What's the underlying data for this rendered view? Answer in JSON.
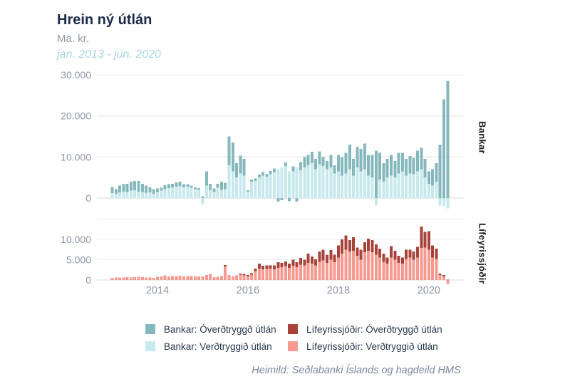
{
  "header": {
    "title": "Hrein ný útlán",
    "unit": "Ma. kr.",
    "period": "jan. 2013 - jún. 2020"
  },
  "footer": {
    "source": "Heimild: Seðlabanki Íslands og hagdeild HMS"
  },
  "colors": {
    "title": "#1c2b4a",
    "muted_text": "#8d96a8",
    "period_text": "#a6d6de",
    "grid": "#ececec",
    "zero_line": "#d8d8d8",
    "panel_label": "#1a1a1a",
    "legend_text": "#27384e",
    "bank_overdtryggd": "#85b8bd",
    "bank_verdtryggd": "#c7e9ee",
    "pension_overdtryggd": "#a7433a",
    "pension_verdtryggd": "#f69a91"
  },
  "legend": {
    "items": [
      {
        "label": "Bankar: Óverðtryggð útlán",
        "color": "#85b8bd"
      },
      {
        "label": "Bankar: Verðtryggið útlán",
        "color": "#c7e9ee"
      },
      {
        "label": "Lífeyrissjóðir: Óverðtryggð útlán",
        "color": "#a7433a"
      },
      {
        "label": "Lífeyrissjóðir: Verðtryggið útlán",
        "color": "#f69a91"
      }
    ]
  },
  "chart_data": {
    "type": "bar",
    "stacked": true,
    "title": "Hrein ný útlán",
    "ylabel": "Ma. kr.",
    "x_start": "jan. 2013",
    "x_end": "jún. 2020",
    "x_ticks": [
      {
        "label": "2014",
        "month_index": 12
      },
      {
        "label": "2016",
        "month_index": 36
      },
      {
        "label": "2018",
        "month_index": 60
      },
      {
        "label": "2020",
        "month_index": 84
      }
    ],
    "panels": [
      {
        "name": "Bankar",
        "ylim": [
          -3000,
          30500
        ],
        "yticks": [
          {
            "value": 30000,
            "label": "30.000"
          },
          {
            "value": 20000,
            "label": "20.000"
          },
          {
            "value": 10000,
            "label": "10.000"
          },
          {
            "value": 0,
            "label": "0"
          }
        ],
        "series": [
          {
            "name": "Bankar: Óverðtryggð útlán",
            "color": "#85b8bd",
            "values": [
              1500,
              1200,
              1600,
              1800,
              2000,
              2200,
              2300,
              2600,
              2000,
              1700,
              1200,
              1200,
              800,
              700,
              900,
              1000,
              900,
              1000,
              1100,
              800,
              600,
              500,
              400,
              400,
              400,
              3500,
              1500,
              800,
              1000,
              2000,
              1500,
              7000,
              7000,
              3500,
              4300,
              4000,
              300,
              500,
              600,
              700,
              800,
              700,
              800,
              900,
              -900,
              -500,
              900,
              -800,
              1200,
              -900,
              2000,
              2500,
              2500,
              2800,
              2500,
              3200,
              2200,
              2000,
              3000,
              2000,
              4000,
              4500,
              5000,
              6000,
              4000,
              5000,
              5500,
              6300,
              5000,
              5500,
              11500,
              6500,
              4500,
              4500,
              5000,
              4000,
              5000,
              4500,
              4000,
              4200,
              4000,
              5000,
              5200,
              4500,
              3000,
              4000,
              4500,
              13000,
              24000,
              28500
            ]
          },
          {
            "name": "Bankar: Verðtryggið útlán",
            "color": "#c7e9ee",
            "values": [
              1200,
              1000,
              1400,
              1600,
              1500,
              1800,
              1900,
              1600,
              1500,
              1300,
              1400,
              1000,
              1500,
              1800,
              2200,
              2400,
              2600,
              2800,
              2900,
              2600,
              2800,
              2500,
              2200,
              2000,
              -1600,
              3000,
              2000,
              1500,
              2500,
              2000,
              2200,
              8000,
              6500,
              5000,
              6000,
              5500,
              1600,
              4000,
              4200,
              5000,
              5500,
              5200,
              5800,
              6300,
              7000,
              7500,
              7800,
              6500,
              6500,
              7500,
              6800,
              7500,
              8000,
              8500,
              7000,
              8200,
              7800,
              7000,
              7500,
              6000,
              6500,
              5500,
              6000,
              7000,
              5500,
              7500,
              6500,
              7000,
              5500,
              5000,
              -1800,
              4500,
              4000,
              5000,
              5500,
              5000,
              6000,
              6500,
              5500,
              6000,
              5800,
              6500,
              7000,
              5000,
              3500,
              3000,
              4000,
              -1800,
              -2000,
              -2500
            ]
          }
        ]
      },
      {
        "name": "Lífeyrissjóðir",
        "ylim": [
          -2000,
          15500
        ],
        "yticks": [
          {
            "value": 15000,
            "label": ""
          },
          {
            "value": 10000,
            "label": "10.000"
          },
          {
            "value": 5000,
            "label": "5.000"
          },
          {
            "value": 0,
            "label": "0"
          }
        ],
        "series": [
          {
            "name": "Lífeyrissjóðir: Óverðtryggð útlán",
            "color": "#a7433a",
            "values": [
              0,
              0,
              0,
              0,
              0,
              0,
              0,
              0,
              0,
              0,
              0,
              0,
              0,
              0,
              0,
              0,
              0,
              0,
              0,
              0,
              0,
              0,
              0,
              0,
              0,
              0,
              0,
              0,
              0,
              0,
              400,
              0,
              0,
              0,
              300,
              400,
              300,
              400,
              600,
              1200,
              900,
              900,
              800,
              1000,
              1400,
              1000,
              1200,
              1000,
              1500,
              1200,
              1600,
              1400,
              2300,
              1800,
              1500,
              2500,
              2700,
              2000,
              2400,
              1800,
              3000,
              3500,
              3500,
              2800,
              3300,
              2000,
              2500,
              2500,
              3000,
              3000,
              2600,
              2200,
              2000,
              1500,
              2800,
              2200,
              1800,
              1500,
              2300,
              2000,
              2000,
              2700,
              5300,
              3800,
              4500,
              3000,
              2500,
              400,
              300,
              100
            ]
          },
          {
            "name": "Lífeyrissjóðir: Verðtryggið útlán",
            "color": "#f69a91",
            "values": [
              550,
              600,
              650,
              600,
              700,
              650,
              700,
              750,
              700,
              650,
              600,
              550,
              800,
              850,
              1100,
              900,
              950,
              1000,
              1050,
              900,
              950,
              1000,
              900,
              850,
              900,
              1200,
              1500,
              700,
              800,
              1000,
              3300,
              1200,
              900,
              1100,
              1300,
              1100,
              900,
              1300,
              2200,
              2800,
              2600,
              2700,
              2800,
              2600,
              3000,
              3200,
              3400,
              3000,
              3500,
              3200,
              3800,
              3600,
              4200,
              4000,
              3600,
              4500,
              4800,
              4200,
              5000,
              4400,
              5500,
              6500,
              7500,
              7000,
              7200,
              6000,
              5000,
              6800,
              7200,
              6800,
              6200,
              5500,
              4500,
              4000,
              5500,
              5000,
              4200,
              4000,
              5200,
              5500,
              5000,
              5500,
              7900,
              8000,
              7500,
              5500,
              5200,
              1200,
              900,
              -1000
            ]
          }
        ]
      }
    ]
  }
}
